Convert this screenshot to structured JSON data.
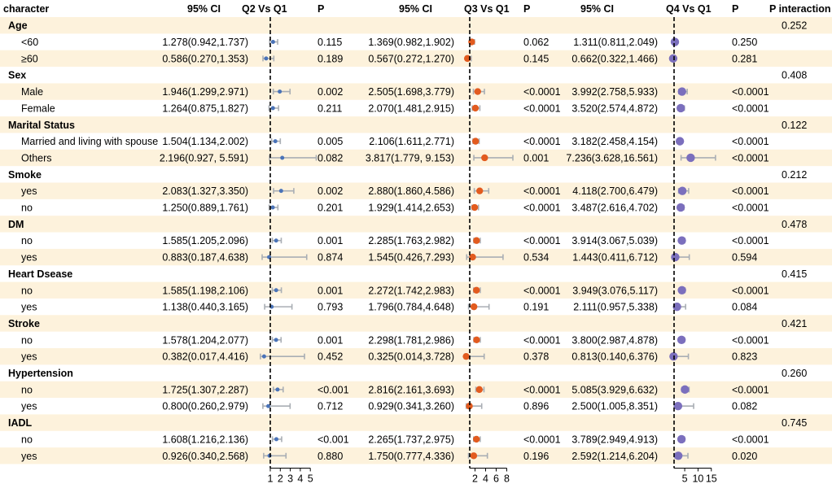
{
  "chart_data": {
    "type": "forest",
    "colors": {
      "band": "#fdf2dc",
      "q2": "#4a73b8",
      "q3": "#e25b1f",
      "q4": "#7b6fbd",
      "whisker": "#a9aeb4",
      "reference": "#000000"
    },
    "headers": {
      "character": "character",
      "ci": "95% CI",
      "q2": "Q2 Vs Q1",
      "q3": "Q3 Vs Q1",
      "q4": "Q4 Vs Q1",
      "p": "P",
      "p_interaction": "P interaction"
    },
    "axes": [
      {
        "name": "q2",
        "ticks": [
          1,
          2,
          3,
          4,
          5
        ]
      },
      {
        "name": "q3",
        "ticks": [
          2,
          4,
          6,
          8
        ]
      },
      {
        "name": "q4",
        "ticks": [
          5,
          10,
          15
        ]
      }
    ],
    "groups": [
      {
        "label": "Age",
        "p_interaction": "0.252",
        "rows": [
          {
            "label": "<60",
            "q2": {
              "ci": "1.278(0.942,1.737)",
              "est": 1.278,
              "lo": 0.942,
              "hi": 1.737,
              "p": "0.115"
            },
            "q3": {
              "ci": "1.369(0.982,1.902)",
              "est": 1.369,
              "lo": 0.982,
              "hi": 1.902,
              "p": "0.062"
            },
            "q4": {
              "ci": "1.311(0.811,2.049)",
              "est": 1.311,
              "lo": 0.811,
              "hi": 2.049,
              "p": "0.250"
            }
          },
          {
            "label": "≥60",
            "q2": {
              "ci": "0.586(0.270,1.353)",
              "est": 0.586,
              "lo": 0.27,
              "hi": 1.353,
              "p": "0.189"
            },
            "q3": {
              "ci": "0.567(0.272,1.270)",
              "est": 0.567,
              "lo": 0.272,
              "hi": 1.27,
              "p": "0.145"
            },
            "q4": {
              "ci": "0.662(0.322,1.466)",
              "est": 0.662,
              "lo": 0.322,
              "hi": 1.466,
              "p": "0.281"
            }
          }
        ]
      },
      {
        "label": "Sex",
        "p_interaction": "0.408",
        "rows": [
          {
            "label": "Male",
            "q2": {
              "ci": "1.946(1.299,2.971)",
              "est": 1.946,
              "lo": 1.299,
              "hi": 2.971,
              "p": "0.002"
            },
            "q3": {
              "ci": "2.505(1.698,3.779)",
              "est": 2.505,
              "lo": 1.698,
              "hi": 3.779,
              "p": "<0.0001"
            },
            "q4": {
              "ci": "3.992(2.758,5.933)",
              "est": 3.992,
              "lo": 2.758,
              "hi": 5.933,
              "p": "<0.0001"
            }
          },
          {
            "label": "Female",
            "q2": {
              "ci": "1.264(0.875,1.827)",
              "est": 1.264,
              "lo": 0.875,
              "hi": 1.827,
              "p": "0.211"
            },
            "q3": {
              "ci": "2.070(1.481,2.915)",
              "est": 2.07,
              "lo": 1.481,
              "hi": 2.915,
              "p": "<0.0001"
            },
            "q4": {
              "ci": "3.520(2.574,4.872)",
              "est": 3.52,
              "lo": 2.574,
              "hi": 4.872,
              "p": "<0.0001"
            }
          }
        ]
      },
      {
        "label": "Marital Status",
        "p_interaction": "0.122",
        "rows": [
          {
            "label": "Married and living with spouse",
            "q2": {
              "ci": "1.504(1.134,2.002)",
              "est": 1.504,
              "lo": 1.134,
              "hi": 2.002,
              "p": "0.005"
            },
            "q3": {
              "ci": "2.106(1.611,2.771)",
              "est": 2.106,
              "lo": 1.611,
              "hi": 2.771,
              "p": "<0.0001"
            },
            "q4": {
              "ci": "3.182(2.458,4.154)",
              "est": 3.182,
              "lo": 2.458,
              "hi": 4.154,
              "p": "<0.0001"
            }
          },
          {
            "label": "Others",
            "q2": {
              "ci": "2.196(0.927, 5.591)",
              "est": 2.196,
              "lo": 0.927,
              "hi": 5.591,
              "p": "0.082"
            },
            "q3": {
              "ci": "3.817(1.779, 9.153)",
              "est": 3.817,
              "lo": 1.779,
              "hi": 9.153,
              "p": "0.001"
            },
            "q4": {
              "ci": "7.236(3.628,16.561)",
              "est": 7.236,
              "lo": 3.628,
              "hi": 16.561,
              "p": "<0.0001"
            }
          }
        ]
      },
      {
        "label": "Smoke",
        "p_interaction": "0.212",
        "rows": [
          {
            "label": "yes",
            "q2": {
              "ci": "2.083(1.327,3.350)",
              "est": 2.083,
              "lo": 1.327,
              "hi": 3.35,
              "p": "0.002"
            },
            "q3": {
              "ci": "2.880(1.860,4.586)",
              "est": 2.88,
              "lo": 1.86,
              "hi": 4.586,
              "p": "<0.0001"
            },
            "q4": {
              "ci": "4.118(2.700,6.479)",
              "est": 4.118,
              "lo": 2.7,
              "hi": 6.479,
              "p": "<0.0001"
            }
          },
          {
            "label": "no",
            "q2": {
              "ci": "1.250(0.889,1.761)",
              "est": 1.25,
              "lo": 0.889,
              "hi": 1.761,
              "p": "0.201"
            },
            "q3": {
              "ci": "1.929(1.414,2.653)",
              "est": 1.929,
              "lo": 1.414,
              "hi": 2.653,
              "p": "<0.0001"
            },
            "q4": {
              "ci": "3.487(2.616,4.702)",
              "est": 3.487,
              "lo": 2.616,
              "hi": 4.702,
              "p": "<0.0001"
            }
          }
        ]
      },
      {
        "label": "DM",
        "p_interaction": "0.478",
        "rows": [
          {
            "label": "no",
            "q2": {
              "ci": "1.585(1.205,2.096)",
              "est": 1.585,
              "lo": 1.205,
              "hi": 2.096,
              "p": "0.001"
            },
            "q3": {
              "ci": "2.285(1.763,2.982)",
              "est": 2.285,
              "lo": 1.763,
              "hi": 2.982,
              "p": "<0.0001"
            },
            "q4": {
              "ci": "3.914(3.067,5.039)",
              "est": 3.914,
              "lo": 3.067,
              "hi": 5.039,
              "p": "<0.0001"
            }
          },
          {
            "label": "yes",
            "q2": {
              "ci": "0.883(0.187,4.638)",
              "est": 0.883,
              "lo": 0.187,
              "hi": 4.638,
              "p": "0.874"
            },
            "q3": {
              "ci": "1.545(0.426,7.293)",
              "est": 1.545,
              "lo": 0.426,
              "hi": 7.293,
              "p": "0.534"
            },
            "q4": {
              "ci": "1.443(0.411,6.712)",
              "est": 1.443,
              "lo": 0.411,
              "hi": 6.712,
              "p": "0.594"
            }
          }
        ]
      },
      {
        "label": "Heart Dsease",
        "p_interaction": "0.415",
        "rows": [
          {
            "label": "no",
            "q2": {
              "ci": "1.585(1.198,2.106)",
              "est": 1.585,
              "lo": 1.198,
              "hi": 2.106,
              "p": "0.001"
            },
            "q3": {
              "ci": "2.272(1.742,2.983)",
              "est": 2.272,
              "lo": 1.742,
              "hi": 2.983,
              "p": "<0.0001"
            },
            "q4": {
              "ci": "3.949(3.076,5.117)",
              "est": 3.949,
              "lo": 3.076,
              "hi": 5.117,
              "p": "<0.0001"
            }
          },
          {
            "label": "yes",
            "q2": {
              "ci": "1.138(0.440,3.165)",
              "est": 1.138,
              "lo": 0.44,
              "hi": 3.165,
              "p": "0.793"
            },
            "q3": {
              "ci": "1.796(0.784,4.648)",
              "est": 1.796,
              "lo": 0.784,
              "hi": 4.648,
              "p": "0.191"
            },
            "q4": {
              "ci": "2.111(0.957,5.338)",
              "est": 2.111,
              "lo": 0.957,
              "hi": 5.338,
              "p": "0.084"
            }
          }
        ]
      },
      {
        "label": "Stroke",
        "p_interaction": "0.421",
        "rows": [
          {
            "label": "no",
            "q2": {
              "ci": "1.578(1.204,2.077)",
              "est": 1.578,
              "lo": 1.204,
              "hi": 2.077,
              "p": "0.001"
            },
            "q3": {
              "ci": "2.298(1.781,2.986)",
              "est": 2.298,
              "lo": 1.781,
              "hi": 2.986,
              "p": "<0.0001"
            },
            "q4": {
              "ci": "3.800(2.987,4.878)",
              "est": 3.8,
              "lo": 2.987,
              "hi": 4.878,
              "p": "<0.0001"
            }
          },
          {
            "label": "yes",
            "q2": {
              "ci": "0.382(0.017,4.416)",
              "est": 0.382,
              "lo": 0.017,
              "hi": 4.416,
              "p": "0.452"
            },
            "q3": {
              "ci": "0.325(0.014,3.728)",
              "est": 0.325,
              "lo": 0.014,
              "hi": 3.728,
              "p": "0.378"
            },
            "q4": {
              "ci": "0.813(0.140,6.376)",
              "est": 0.813,
              "lo": 0.14,
              "hi": 6.376,
              "p": "0.823"
            }
          }
        ]
      },
      {
        "label": "Hypertension",
        "p_interaction": "0.260",
        "rows": [
          {
            "label": "no",
            "q2": {
              "ci": "1.725(1.307,2.287)",
              "est": 1.725,
              "lo": 1.307,
              "hi": 2.287,
              "p": "<0.001"
            },
            "q3": {
              "ci": "2.816(2.161,3.693)",
              "est": 2.816,
              "lo": 2.161,
              "hi": 3.693,
              "p": "<0.0001"
            },
            "q4": {
              "ci": "5.085(3.929,6.632)",
              "est": 5.085,
              "lo": 3.929,
              "hi": 6.632,
              "p": "<0.0001"
            }
          },
          {
            "label": "yes",
            "q2": {
              "ci": "0.800(0.260,2.979)",
              "est": 0.8,
              "lo": 0.26,
              "hi": 2.979,
              "p": "0.712"
            },
            "q3": {
              "ci": "0.929(0.341,3.260)",
              "est": 0.929,
              "lo": 0.341,
              "hi": 3.26,
              "p": "0.896"
            },
            "q4": {
              "ci": "2.500(1.005,8.351)",
              "est": 2.5,
              "lo": 1.005,
              "hi": 8.351,
              "p": "0.082"
            }
          }
        ]
      },
      {
        "label": "IADL",
        "p_interaction": "0.745",
        "rows": [
          {
            "label": "no",
            "q2": {
              "ci": "1.608(1.216,2.136)",
              "est": 1.608,
              "lo": 1.216,
              "hi": 2.136,
              "p": "<0.001"
            },
            "q3": {
              "ci": "2.265(1.737,2.975)",
              "est": 2.265,
              "lo": 1.737,
              "hi": 2.975,
              "p": "<0.0001"
            },
            "q4": {
              "ci": "3.789(2.949,4.913)",
              "est": 3.789,
              "lo": 2.949,
              "hi": 4.913,
              "p": "<0.0001"
            }
          },
          {
            "label": "yes",
            "q2": {
              "ci": "0.926(0.340,2.568)",
              "est": 0.926,
              "lo": 0.34,
              "hi": 2.568,
              "p": "0.880"
            },
            "q3": {
              "ci": "1.750(0.777,4.336)",
              "est": 1.75,
              "lo": 0.777,
              "hi": 4.336,
              "p": "0.196"
            },
            "q4": {
              "ci": "2.592(1.214,6.204)",
              "est": 2.592,
              "lo": 1.214,
              "hi": 6.204,
              "p": "0.020"
            }
          }
        ]
      }
    ]
  }
}
